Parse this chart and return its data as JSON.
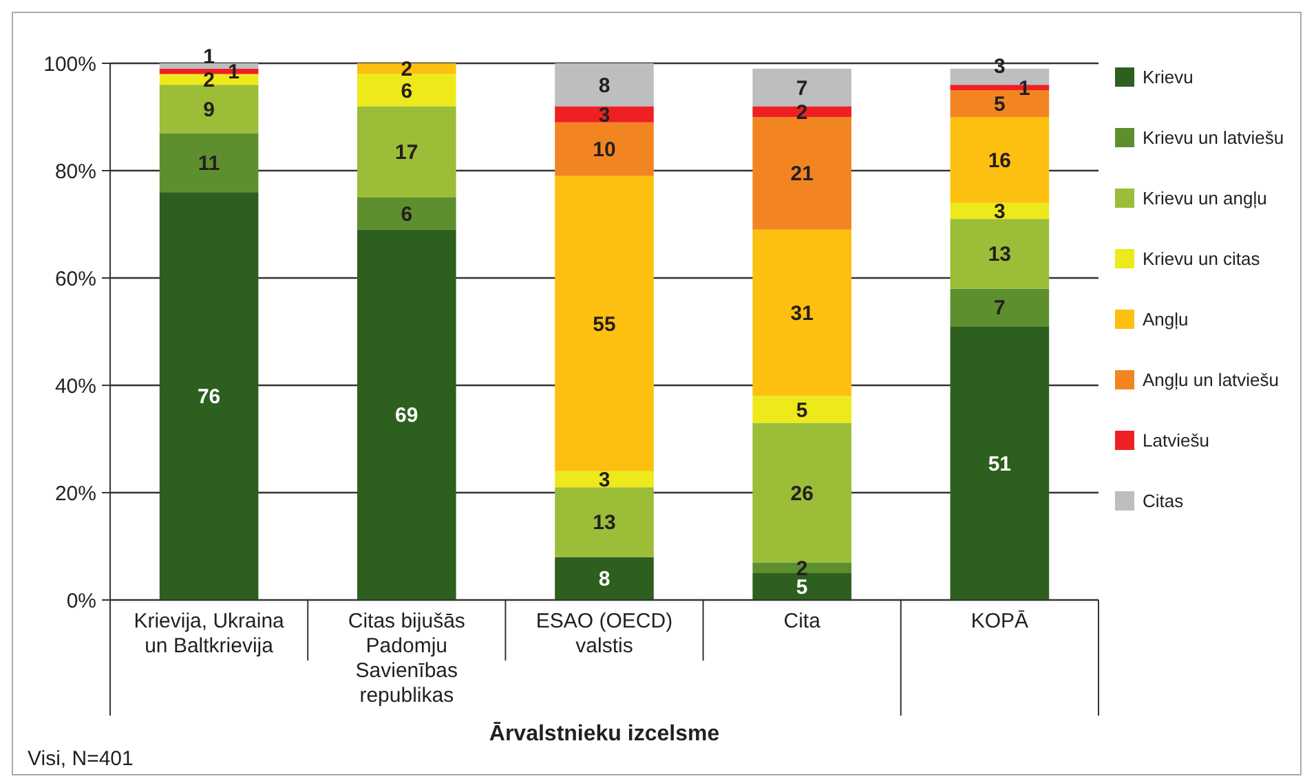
{
  "chart_data": {
    "type": "bar",
    "stacked": true,
    "xlabel": "Ārvalstnieku izcelsme",
    "categories": [
      "Krievija, Ukraina un Baltkrievija",
      "Citas bijušās Padomju Savienības republikas",
      "ESAO (OECD) valstis",
      "Cita",
      "KOPĀ"
    ],
    "series": [
      {
        "name": "Krievu",
        "color": "#2d5f1e",
        "values": [
          76,
          69,
          8,
          5,
          51
        ]
      },
      {
        "name": "Krievu un latviešu",
        "color": "#5e8f2e",
        "values": [
          11,
          6,
          null,
          2,
          7
        ]
      },
      {
        "name": "Krievu un angļu",
        "color": "#9bbd37",
        "values": [
          9,
          17,
          13,
          26,
          13
        ]
      },
      {
        "name": "Krievu un citas",
        "color": "#ede91a",
        "values": [
          2,
          6,
          3,
          5,
          3
        ]
      },
      {
        "name": "Angļu",
        "color": "#fdc010",
        "values": [
          null,
          2,
          55,
          31,
          16
        ]
      },
      {
        "name": "Angļu un latviešu",
        "color": "#f28522",
        "values": [
          null,
          null,
          10,
          21,
          5
        ]
      },
      {
        "name": "Latviešu",
        "color": "#ee2024",
        "values": [
          1,
          null,
          3,
          2,
          1
        ]
      },
      {
        "name": "Citas",
        "color": "#bcbec0",
        "values": [
          1,
          null,
          8,
          7,
          3
        ]
      }
    ],
    "ylim": [
      0,
      100
    ],
    "yticks": [
      {
        "value": 0,
        "label": "0%"
      },
      {
        "value": 20,
        "label": "20%"
      },
      {
        "value": 40,
        "label": "40%"
      },
      {
        "value": 60,
        "label": "60%"
      },
      {
        "value": 80,
        "label": "80%"
      },
      {
        "value": 100,
        "label": "100%"
      }
    ],
    "grid": "y",
    "legend": "right",
    "data_labels": true,
    "annotations": [
      "Visi, N=401"
    ]
  }
}
